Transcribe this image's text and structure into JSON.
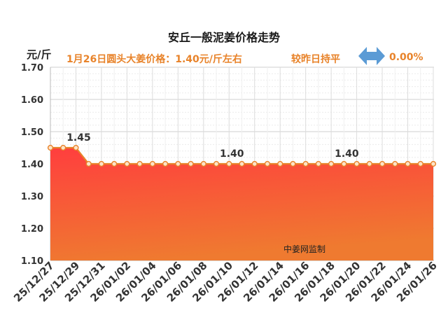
{
  "chart_data": {
    "type": "area",
    "title": "安丘一般泥姜价格走势",
    "ylabel": "元/斤",
    "ylim": [
      1.1,
      1.7
    ],
    "yticks": [
      "1.70",
      "1.60",
      "1.50",
      "1.40",
      "1.30",
      "1.20",
      "1.10"
    ],
    "ytick_values": [
      1.7,
      1.6,
      1.5,
      1.4,
      1.3,
      1.2,
      1.1
    ],
    "x": [
      "25/12/27",
      "25/12/28",
      "25/12/29",
      "25/12/30",
      "25/12/31",
      "26/01/01",
      "26/01/02",
      "26/01/03",
      "26/01/04",
      "26/01/05",
      "26/01/06",
      "26/01/07",
      "26/01/08",
      "26/01/09",
      "26/01/10",
      "26/01/11",
      "26/01/12",
      "26/01/13",
      "26/01/14",
      "26/01/15",
      "26/01/16",
      "26/01/17",
      "26/01/18",
      "26/01/19",
      "26/01/20",
      "26/01/21",
      "26/01/22",
      "26/01/23",
      "26/01/24",
      "26/01/25",
      "26/01/26"
    ],
    "xtick_labels": [
      "25/12/27",
      "25/12/29",
      "25/12/31",
      "26/01/02",
      "26/01/04",
      "26/01/06",
      "26/01/08",
      "26/01/10",
      "26/01/12",
      "26/01/14",
      "26/01/16",
      "26/01/18",
      "26/01/20",
      "26/01/22",
      "26/01/24",
      "26/01/26"
    ],
    "values": [
      1.45,
      1.45,
      1.45,
      1.4,
      1.4,
      1.4,
      1.4,
      1.4,
      1.4,
      1.4,
      1.4,
      1.4,
      1.4,
      1.4,
      1.4,
      1.4,
      1.4,
      1.4,
      1.4,
      1.4,
      1.4,
      1.4,
      1.4,
      1.4,
      1.4,
      1.4,
      1.4,
      1.4,
      1.4,
      1.4,
      1.4
    ],
    "data_labels": [
      {
        "x": "25/12/29",
        "text": "1.45",
        "value": 1.45
      },
      {
        "x": "26/01/10",
        "text": "1.40",
        "value": 1.4
      },
      {
        "x": "26/01/19",
        "text": "1.40",
        "value": 1.4
      }
    ],
    "grid": true,
    "colors": {
      "line": "#e8832a",
      "fill_top": "#ff4040",
      "fill_bottom": "#f08030",
      "marker_fill": "#fde3c8"
    }
  },
  "header": {
    "price_text": "1月26日圆头大姜价格：1.40元/斤左右",
    "compare_text": "较昨日持平",
    "change_text": "0.00%",
    "change_icon": "double-arrow-icon",
    "accent_color": "#e8832a",
    "icon_color": "#5b9bd5"
  },
  "watermark": "中姜网监制"
}
